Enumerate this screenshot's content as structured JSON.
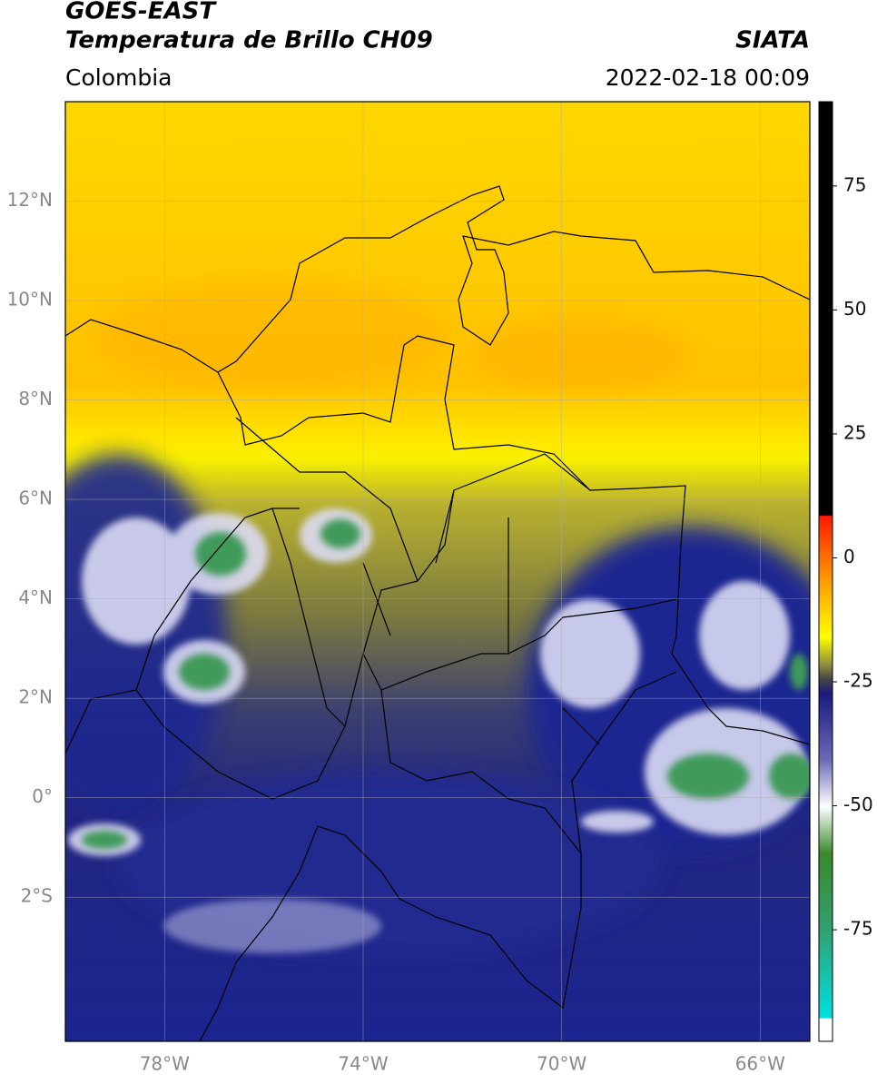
{
  "header": {
    "satellite": "GOES-EAST",
    "product": "Temperatura de Brillo CH09",
    "source": "SIATA",
    "region": "Colombia",
    "datetime": "2022-02-18 00:09"
  },
  "map": {
    "xlim": [
      -80,
      -65
    ],
    "ylim": [
      -4.9,
      14
    ],
    "xticks": [
      {
        "value": -78,
        "label": "78°W"
      },
      {
        "value": -74,
        "label": "74°W"
      },
      {
        "value": -70,
        "label": "70°W"
      },
      {
        "value": -66,
        "label": "66°W"
      }
    ],
    "yticks": [
      {
        "value": 12,
        "label": "12°N"
      },
      {
        "value": 10,
        "label": "10°N"
      },
      {
        "value": 8,
        "label": "8°N"
      },
      {
        "value": 6,
        "label": "6°N"
      },
      {
        "value": 4,
        "label": "4°N"
      },
      {
        "value": 2,
        "label": "2°N"
      },
      {
        "value": 0,
        "label": "0°"
      },
      {
        "value": -2,
        "label": "2°S"
      }
    ],
    "grid": true
  },
  "colorbar": {
    "lim": [
      -97.5,
      92
    ],
    "ticks": [
      75,
      50,
      25,
      0,
      -25,
      -50,
      -75
    ]
  }
}
